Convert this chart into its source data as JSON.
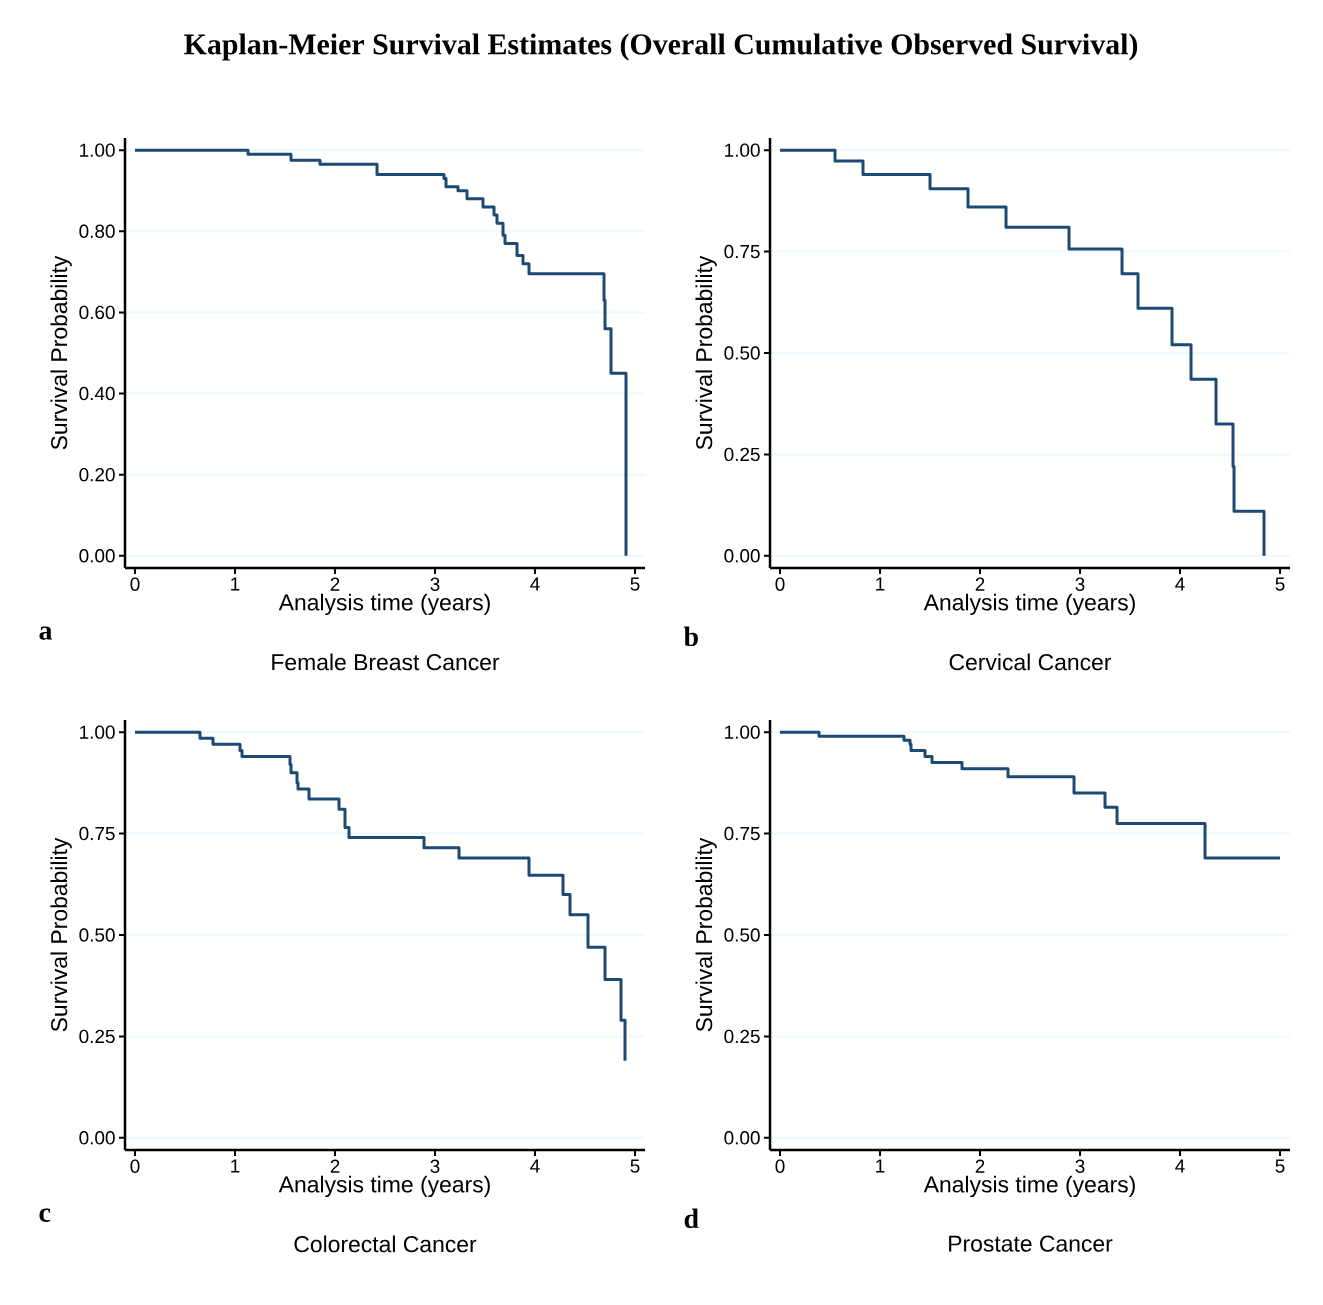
{
  "chart_data": [
    {
      "type": "step",
      "title": "Kaplan-Meier Survival Estimates (Overall Cumulative Observed Survival)",
      "subtitle": "Female Breast Cancer",
      "xlabel": "Analysis time (years)",
      "ylabel": "Survival Probability",
      "annotations": [
        "a"
      ],
      "color": "#1d4a73",
      "grid": "y",
      "x": [
        0,
        1.13,
        1.56,
        1.85,
        2.42,
        3.09,
        3.11,
        3.23,
        3.32,
        3.48,
        3.59,
        3.62,
        3.68,
        3.7,
        3.82,
        3.88,
        3.94,
        4.69,
        4.7,
        4.76,
        4.91
      ],
      "values": [
        1.0,
        0.99,
        0.975,
        0.965,
        0.94,
        0.93,
        0.91,
        0.9,
        0.88,
        0.86,
        0.84,
        0.82,
        0.79,
        0.77,
        0.74,
        0.72,
        0.695,
        0.63,
        0.56,
        0.45,
        0.0
      ],
      "xlim": [
        -0.1,
        5.1
      ],
      "ylim": [
        -0.03,
        1.03
      ],
      "xticks": [
        0,
        1,
        2,
        3,
        4,
        5
      ],
      "yticks": [
        {
          "value": 0,
          "label": "0.00"
        },
        {
          "value": 0.2,
          "label": "0.20"
        },
        {
          "value": 0.4,
          "label": "0.40"
        },
        {
          "value": 0.6,
          "label": "0.60"
        },
        {
          "value": 0.8,
          "label": "0.80"
        },
        {
          "value": 1,
          "label": "1.00"
        }
      ]
    },
    {
      "type": "step",
      "subtitle": "Cervical Cancer",
      "xlabel": "Analysis time (years)",
      "ylabel": "Survival Probability",
      "annotations": [
        "b"
      ],
      "color": "#1d4a73",
      "grid": "y",
      "x": [
        0,
        0.55,
        0.83,
        1.5,
        1.88,
        2.26,
        2.89,
        3.42,
        3.58,
        3.92,
        4.11,
        4.36,
        4.53,
        4.54,
        4.84
      ],
      "values": [
        1.0,
        0.973,
        0.94,
        0.905,
        0.86,
        0.81,
        0.756,
        0.695,
        0.61,
        0.52,
        0.435,
        0.325,
        0.22,
        0.11,
        0.0
      ],
      "xlim": [
        -0.1,
        5.1
      ],
      "ylim": [
        -0.03,
        1.03
      ],
      "xticks": [
        0,
        1,
        2,
        3,
        4,
        5
      ],
      "yticks": [
        {
          "value": 0,
          "label": "0.00"
        },
        {
          "value": 0.25,
          "label": "0.25"
        },
        {
          "value": 0.5,
          "label": "0.50"
        },
        {
          "value": 0.75,
          "label": "0.75"
        },
        {
          "value": 1,
          "label": "1.00"
        }
      ]
    },
    {
      "type": "step",
      "subtitle": "Colorectal Cancer",
      "xlabel": "Analysis time (years)",
      "ylabel": "Survival Probability",
      "annotations": [
        "c"
      ],
      "color": "#1d4a73",
      "grid": "y",
      "x": [
        0,
        0.65,
        0.78,
        1.05,
        1.07,
        1.55,
        1.56,
        1.62,
        1.63,
        1.74,
        2.04,
        2.1,
        2.14,
        2.89,
        3.24,
        3.94,
        4.28,
        4.35,
        4.53,
        4.7,
        4.86,
        4.9
      ],
      "values": [
        1.0,
        0.985,
        0.97,
        0.955,
        0.94,
        0.92,
        0.9,
        0.875,
        0.86,
        0.835,
        0.81,
        0.765,
        0.74,
        0.715,
        0.69,
        0.647,
        0.6,
        0.55,
        0.47,
        0.39,
        0.29,
        0.19
      ],
      "xlim": [
        -0.1,
        5.1
      ],
      "ylim": [
        -0.03,
        1.03
      ],
      "xticks": [
        0,
        1,
        2,
        3,
        4,
        5
      ],
      "yticks": [
        {
          "value": 0,
          "label": "0.00"
        },
        {
          "value": 0.25,
          "label": "0.25"
        },
        {
          "value": 0.5,
          "label": "0.50"
        },
        {
          "value": 0.75,
          "label": "0.75"
        },
        {
          "value": 1,
          "label": "1.00"
        }
      ]
    },
    {
      "type": "step",
      "subtitle": "Prostate Cancer",
      "xlabel": "Analysis time (years)",
      "ylabel": "Survival Probability",
      "annotations": [
        "d"
      ],
      "color": "#1d4a73",
      "grid": "y",
      "x": [
        0,
        0.39,
        1.24,
        1.3,
        1.31,
        1.45,
        1.52,
        1.82,
        2.28,
        2.94,
        3.25,
        3.37,
        4.25,
        5.0
      ],
      "values": [
        1.0,
        0.99,
        0.98,
        0.97,
        0.955,
        0.94,
        0.925,
        0.91,
        0.89,
        0.85,
        0.815,
        0.775,
        0.69,
        0.69
      ],
      "xlim": [
        -0.1,
        5.1
      ],
      "ylim": [
        -0.03,
        1.03
      ],
      "xticks": [
        0,
        1,
        2,
        3,
        4,
        5
      ],
      "yticks": [
        {
          "value": 0,
          "label": "0.00"
        },
        {
          "value": 0.25,
          "label": "0.25"
        },
        {
          "value": 0.5,
          "label": "0.50"
        },
        {
          "value": 0.75,
          "label": "0.75"
        },
        {
          "value": 1,
          "label": "1.00"
        }
      ]
    }
  ]
}
